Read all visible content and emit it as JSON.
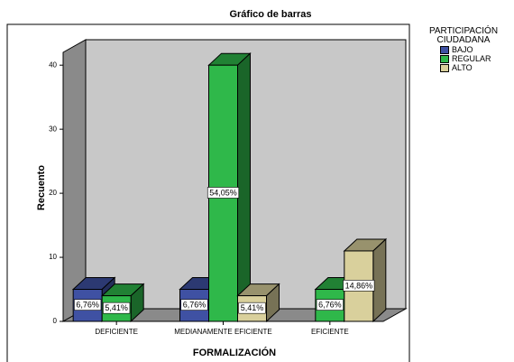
{
  "chart_data": {
    "type": "bar3d",
    "title": "Gráfico de barras",
    "x_label": "FORMALIZACIÓN",
    "y_label": "Recuento",
    "legend_title": "PARTICIPACIÓN CIUDADANA",
    "categories": [
      "DEFICIENTE",
      "MEDIANAMENTE EFICIENTE",
      "EFICIENTE"
    ],
    "series": [
      {
        "name": "BAJO",
        "color": "#3f51a3",
        "values": [
          5,
          5,
          null
        ],
        "value_labels": [
          "6,76%",
          "6,76%",
          null
        ]
      },
      {
        "name": "REGULAR",
        "color": "#2fb84a",
        "values": [
          4,
          40,
          5
        ],
        "value_labels": [
          "5,41%",
          "54,05%",
          "6,76%"
        ]
      },
      {
        "name": "ALTO",
        "color": "#d9d09c",
        "values": [
          null,
          4,
          11
        ],
        "value_labels": [
          null,
          "5,41%",
          "14,86%"
        ]
      }
    ],
    "ylim": [
      0,
      42
    ],
    "yticks": [
      0,
      10,
      20,
      30,
      40
    ]
  }
}
